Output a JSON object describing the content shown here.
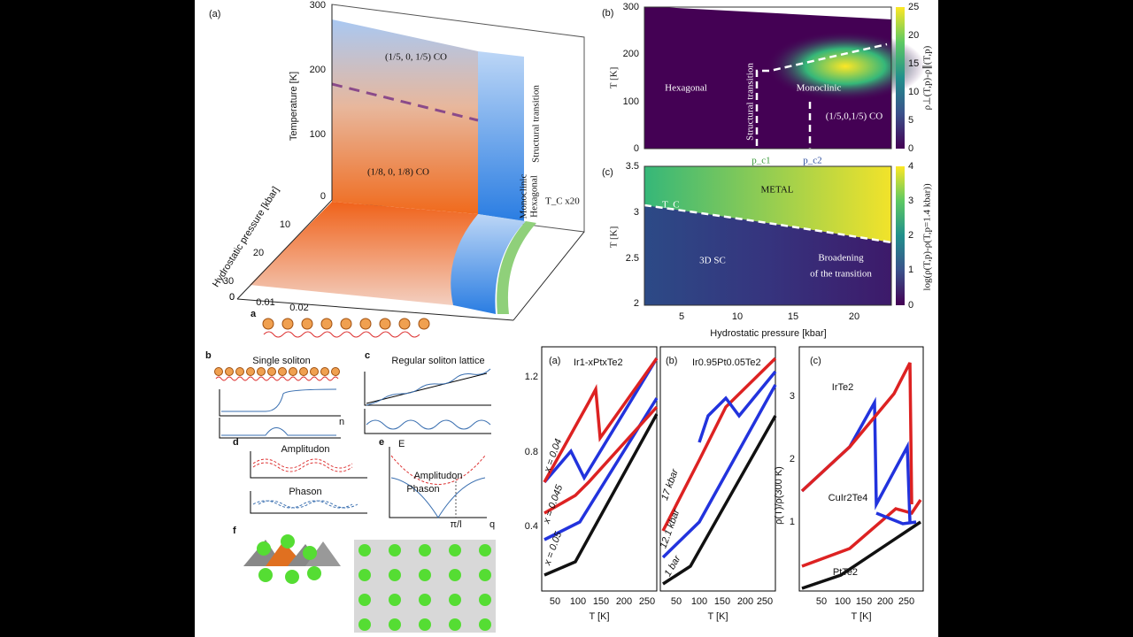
{
  "phase_diagram_3d": {
    "panel_label": "(a)",
    "temperature_axis": "Temperature [K]",
    "temperature_ticks": [
      "300",
      "200",
      "100",
      "0"
    ],
    "pressure_axis": "Hydrostatic pressure [kbar]",
    "pressure_ticks": [
      "0",
      "10",
      "20",
      "30"
    ],
    "doping_ticks": [
      "0",
      "0.01",
      "0.02"
    ],
    "phase_high": "(1/5, 0, 1/5) CO",
    "phase_low": "(1/8, 0, 1/8) CO",
    "structural": "Structural transition",
    "monoclinic": "Monoclinic",
    "hexagonal": "Hexagonal",
    "tc": "T_C x20"
  },
  "heatmap_b": {
    "panel_label": "(b)",
    "y_axis": "T [K]",
    "y_ticks": [
      "300",
      "200",
      "100",
      "0"
    ],
    "colorbar_ticks": [
      "25",
      "20",
      "15",
      "10",
      "5",
      "0"
    ],
    "colorbar_label": "ρ⊥(T,p)-ρ∥(T,p)",
    "hexagonal": "Hexagonal",
    "monoclinic": "Monoclinic",
    "structural": "Structural transition",
    "co": "(1/5,0,1/5) CO",
    "pc1": "p_c1",
    "pc2": "p_c2"
  },
  "heatmap_c": {
    "panel_label": "(c)",
    "y_axis": "T [K]",
    "y_ticks": [
      "3.5",
      "3",
      "2.5",
      "2"
    ],
    "x_ticks": [
      "5",
      "10",
      "15",
      "20"
    ],
    "x_axis": "Hydrostatic pressure [kbar]",
    "colorbar_ticks": [
      "4",
      "3",
      "2",
      "1",
      "0"
    ],
    "colorbar_label": "log(ρ(T,p)-ρ(T,p=1.4 kbar))",
    "metal": "METAL",
    "tc": "T_C",
    "sc": "3D SC",
    "broadening": "Broadening",
    "broadening_2": "of the transition"
  },
  "soliton": {
    "a": "a",
    "b": "b",
    "single": "Single soliton",
    "c": "c",
    "lattice": "Regular soliton lattice",
    "d": "d",
    "amplitudon": "Amplitudon",
    "phason": "Phason",
    "e": "e",
    "energy": "E",
    "e_amplitudon": "Amplitudon",
    "e_phason": "Phason",
    "pi_l": "π/l",
    "q": "q",
    "f": "f",
    "n": "n"
  },
  "resistivity": {
    "a": {
      "panel_label": "(a)",
      "formula": "Ir1-xPtxTe2",
      "y_ticks": [
        "1.2",
        "0.8",
        "0.4"
      ],
      "x_ticks": [
        "50",
        "100",
        "150",
        "200",
        "250"
      ],
      "x_axis": "T [K]",
      "labels": [
        "x = 0.04",
        "x = 0.045",
        "x = 0.05"
      ]
    },
    "b": {
      "panel_label": "(b)",
      "formula": "Ir0.95Pt0.05Te2",
      "x_ticks": [
        "50",
        "100",
        "150",
        "200",
        "250"
      ],
      "x_axis": "T [K]",
      "labels": [
        "17 kbar",
        "12.1 kbar",
        "1 bar"
      ]
    },
    "c": {
      "panel_label": "(c)",
      "y_ticks": [
        "3",
        "2",
        "1"
      ],
      "x_ticks": [
        "50",
        "100",
        "150",
        "200",
        "250"
      ],
      "x_axis": "T [K]",
      "y_axis": "ρ(T)/ρ(300 K)",
      "labels": [
        "IrTe2",
        "CuIr2Te4",
        "PtTe2"
      ]
    }
  }
}
